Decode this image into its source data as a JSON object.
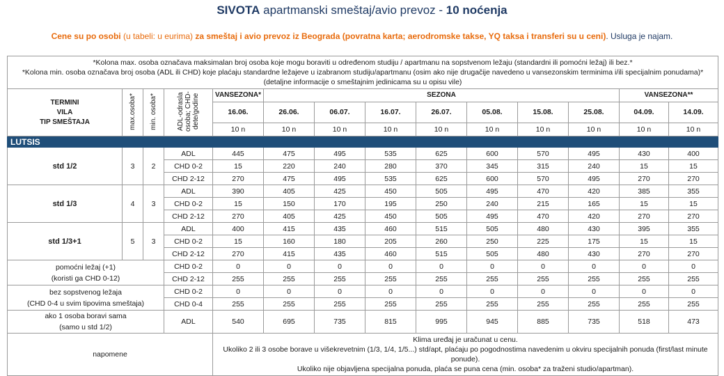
{
  "title": {
    "place": "SIVOTA",
    "middle": "apartmanski smeštaj/avio prevoz - ",
    "nights": "10 noćenja"
  },
  "subtitle": {
    "part1": "Cene su po osobi",
    "part2": " (u tabeli: u eurima) ",
    "part3": "za smeštaj i avio prevoz iz Beograda (povratna karta; aerodromske takse, YQ taksa i transferi su u ceni)",
    "part4": ". Usluga je najam."
  },
  "info": {
    "line1": "*Kolona max. osoba označava maksimalan broj osoba koje mogu boraviti u određenom studiju / apartmanu na sopstvenom ležaju (standardni ili pomoćni ležaj) ili bez.*",
    "line2": "*Kolona min. osoba označava broj osoba (ADL ili CHD) koje plaćaju standardne ležajeve u izabranom studiju/apartmanu (osim ako nije drugačije navedeno u vansezonskim terminima i/ili specijalnim ponudama)*",
    "line3": "(detaljne informacije o smeštajnim jedinicama su u opisu vile)"
  },
  "header": {
    "termini": "TERMINI",
    "vila": "VILA",
    "tip": "TIP SMEŠTAJA",
    "max": "max.osoba*",
    "min": "min. osoba*",
    "adl": "ADL-odrasla osoba; CHD-dete/godine",
    "season_pre": "VANSEZONA*",
    "season_main": "SEZONA",
    "season_post": "VANSEZONA**",
    "dates": [
      "16.06.",
      "26.06.",
      "06.07.",
      "16.07.",
      "26.07.",
      "05.08.",
      "15.08.",
      "25.08.",
      "04.09.",
      "14.09."
    ],
    "nights": [
      "10 n",
      "10 n",
      "10 n",
      "10 n",
      "10 n",
      "10 n",
      "10 n",
      "10 n",
      "10 n",
      "10 n"
    ]
  },
  "villa": "LUTSIS",
  "groups": [
    {
      "type": "std 1/2",
      "max": "3",
      "min": "2",
      "rows": [
        {
          "label": "ADL",
          "prices": [
            "445",
            "475",
            "495",
            "535",
            "625",
            "600",
            "570",
            "495",
            "430",
            "400"
          ]
        },
        {
          "label": "CHD 0-2",
          "prices": [
            "15",
            "220",
            "240",
            "280",
            "370",
            "345",
            "315",
            "240",
            "15",
            "15"
          ]
        },
        {
          "label": "CHD 2-12",
          "prices": [
            "270",
            "475",
            "495",
            "535",
            "625",
            "600",
            "570",
            "495",
            "270",
            "270"
          ]
        }
      ]
    },
    {
      "type": "std 1/3",
      "max": "4",
      "min": "3",
      "rows": [
        {
          "label": "ADL",
          "prices": [
            "390",
            "405",
            "425",
            "450",
            "505",
            "495",
            "470",
            "420",
            "385",
            "355"
          ]
        },
        {
          "label": "CHD 0-2",
          "prices": [
            "15",
            "150",
            "170",
            "195",
            "250",
            "240",
            "215",
            "165",
            "15",
            "15"
          ]
        },
        {
          "label": "CHD 2-12",
          "prices": [
            "270",
            "405",
            "425",
            "450",
            "505",
            "495",
            "470",
            "420",
            "270",
            "270"
          ]
        }
      ]
    },
    {
      "type": "std 1/3+1",
      "max": "5",
      "min": "3",
      "rows": [
        {
          "label": "ADL",
          "prices": [
            "400",
            "415",
            "435",
            "460",
            "515",
            "505",
            "480",
            "430",
            "395",
            "355"
          ]
        },
        {
          "label": "CHD 0-2",
          "prices": [
            "15",
            "160",
            "180",
            "205",
            "260",
            "250",
            "225",
            "175",
            "15",
            "15"
          ]
        },
        {
          "label": "CHD 2-12",
          "prices": [
            "270",
            "415",
            "435",
            "460",
            "515",
            "505",
            "480",
            "430",
            "270",
            "270"
          ]
        }
      ]
    }
  ],
  "extras": [
    {
      "label1": "pomoćni ležaj (+1)",
      "label2": "(koristi ga CHD 0-12)",
      "rows": [
        {
          "label": "CHD 0-2",
          "prices": [
            "0",
            "0",
            "0",
            "0",
            "0",
            "0",
            "0",
            "0",
            "0",
            "0"
          ]
        },
        {
          "label": "CHD 2-12",
          "prices": [
            "255",
            "255",
            "255",
            "255",
            "255",
            "255",
            "255",
            "255",
            "255",
            "255"
          ]
        }
      ]
    },
    {
      "label1": "bez sopstvenog ležaja",
      "label2": "(CHD 0-4 u svim tipovima smeštaja)",
      "rows": [
        {
          "label": "CHD 0-2",
          "prices": [
            "0",
            "0",
            "0",
            "0",
            "0",
            "0",
            "0",
            "0",
            "0",
            "0"
          ]
        },
        {
          "label": "CHD 0-4",
          "prices": [
            "255",
            "255",
            "255",
            "255",
            "255",
            "255",
            "255",
            "255",
            "255",
            "255"
          ]
        }
      ]
    },
    {
      "label1": "ako 1 osoba boravi sama",
      "label2": "(samo u std 1/2)",
      "rows": [
        {
          "label": "ADL",
          "prices": [
            "540",
            "695",
            "735",
            "815",
            "995",
            "945",
            "885",
            "735",
            "518",
            "473"
          ]
        }
      ]
    }
  ],
  "notes": {
    "label": "napomene",
    "line1": "Klima uređaj je uračunat u cenu.",
    "line2": "Ukoliko 2 ili 3 osobe borave u višekrevetnim (1/3, 1/4, 1/5...) std/apt, plaćaju po pogodnostima navedenim u okviru specijalnih ponuda (first/last minute ponude).",
    "line3": "Ukoliko nije objavljena specijalna ponuda, plaća se puna cena (min. osoba* za traženi studio/apartman)."
  }
}
